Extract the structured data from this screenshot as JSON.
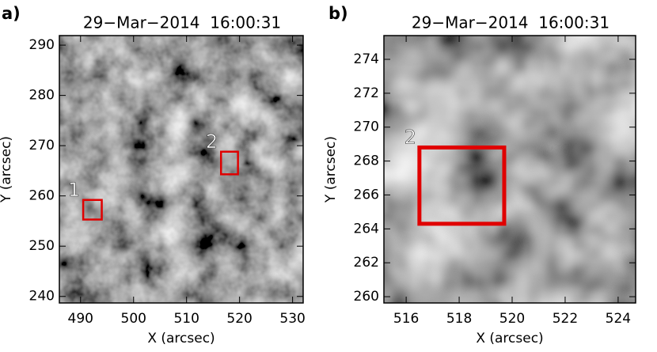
{
  "chart_data": [
    {
      "type": "image",
      "panel_label": "a)",
      "title": "29−Mar−2014  16:00:31",
      "xlabel": "X (arcsec)",
      "ylabel": "Y (arcsec)",
      "xlim": [
        486,
        532
      ],
      "xticks": [
        490,
        500,
        510,
        520,
        530
      ],
      "ylim": [
        238.7,
        291.9
      ],
      "yticks": [
        240,
        250,
        260,
        270,
        280,
        290
      ],
      "regions": [
        {
          "label": "1",
          "x": [
            490.5,
            494
          ],
          "y": [
            255.3,
            259.2
          ],
          "color": "#e00000"
        },
        {
          "label": "2",
          "x": [
            516.5,
            519.7
          ],
          "y": [
            264.3,
            268.8
          ],
          "color": "#e00000"
        }
      ]
    },
    {
      "type": "image",
      "panel_label": "b)",
      "title": "29−Mar−2014  16:00:31",
      "xlabel": "X (arcsec)",
      "ylabel": "Y (arcsec)",
      "xlim": [
        515.16,
        524.66
      ],
      "xticks": [
        516,
        518,
        520,
        522,
        524
      ],
      "ylim": [
        259.63,
        275.4
      ],
      "yticks": [
        260,
        262,
        264,
        266,
        268,
        270,
        272,
        274
      ],
      "regions": [
        {
          "label": "2",
          "x": [
            516.5,
            519.7
          ],
          "y": [
            264.3,
            268.8
          ],
          "color": "#e00000"
        }
      ]
    }
  ]
}
